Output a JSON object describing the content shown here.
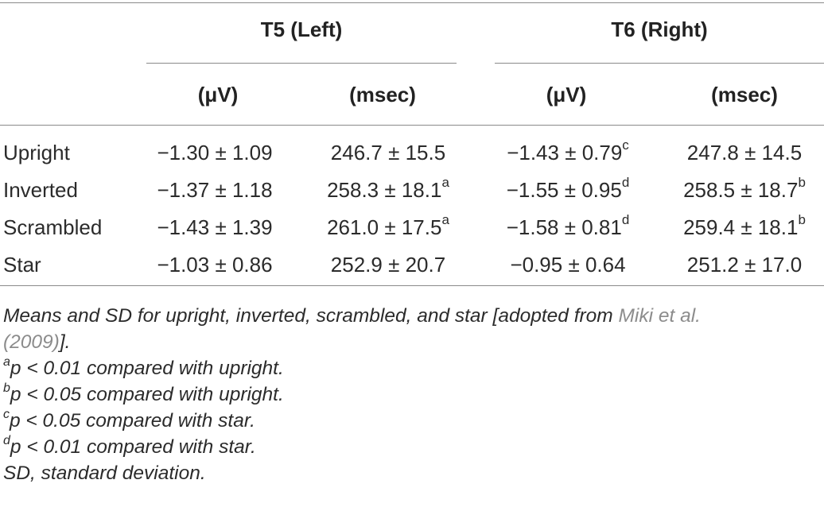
{
  "header": {
    "group1": "T5 (Left)",
    "group2": "T6 (Right)",
    "sub_labels": [
      "(μV)",
      "(msec)",
      "(μV)",
      "(msec)"
    ]
  },
  "rows": [
    {
      "label": "Upright",
      "t5_uv": "−1.30 ± 1.09",
      "t5_uv_sup": "",
      "t5_ms": "246.7 ± 15.5",
      "t5_ms_sup": "",
      "t6_uv": "−1.43 ± 0.79",
      "t6_uv_sup": "c",
      "t6_ms": "247.8 ± 14.5",
      "t6_ms_sup": ""
    },
    {
      "label": "Inverted",
      "t5_uv": "−1.37 ± 1.18",
      "t5_uv_sup": "",
      "t5_ms": "258.3 ± 18.1",
      "t5_ms_sup": "a",
      "t6_uv": "−1.55 ± 0.95",
      "t6_uv_sup": "d",
      "t6_ms": "258.5 ± 18.7",
      "t6_ms_sup": "b"
    },
    {
      "label": "Scrambled",
      "t5_uv": "−1.43 ± 1.39",
      "t5_uv_sup": "",
      "t5_ms": "261.0 ± 17.5",
      "t5_ms_sup": "a",
      "t6_uv": "−1.58 ± 0.81",
      "t6_uv_sup": "d",
      "t6_ms": "259.4 ± 18.1",
      "t6_ms_sup": "b"
    },
    {
      "label": "Star",
      "t5_uv": "−1.03 ± 0.86",
      "t5_uv_sup": "",
      "t5_ms": "252.9 ± 20.7",
      "t5_ms_sup": "",
      "t6_uv": "−0.95 ± 0.64",
      "t6_uv_sup": "",
      "t6_ms": "251.2 ± 17.0",
      "t6_ms_sup": ""
    }
  ],
  "notes": {
    "caption_pre": "Means and SD for upright, inverted, scrambled, and star [adopted from ",
    "caption_link_1": "Miki et al.",
    "caption_link_2": "(2009)",
    "caption_post": "].",
    "footnotes": [
      {
        "mark": "a",
        "text": "p < 0.01 compared with upright."
      },
      {
        "mark": "b",
        "text": "p < 0.05 compared with upright."
      },
      {
        "mark": "c",
        "text": "p < 0.05 compared with star."
      },
      {
        "mark": "d",
        "text": "p < 0.01 compared with star."
      }
    ],
    "abbrev": "SD, standard deviation."
  }
}
